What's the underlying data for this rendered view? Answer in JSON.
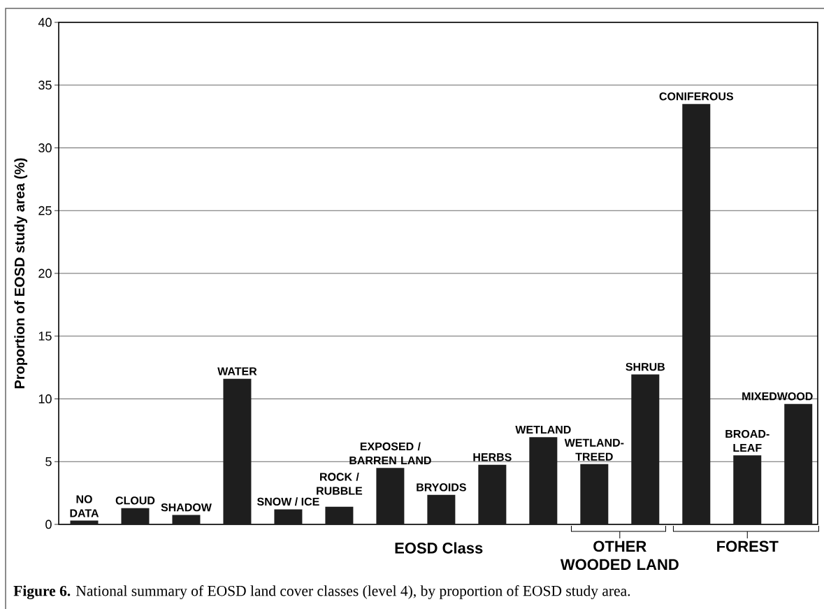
{
  "chart_data": {
    "type": "bar",
    "xlabel": "EOSD Class",
    "ylabel": "Proportion of EOSD study area (%)",
    "categories": [
      "NO DATA",
      "CLOUD",
      "SHADOW",
      "WATER",
      "SNOW / ICE",
      "ROCK / RUBBLE",
      "EXPOSED / BARREN LAND",
      "BRYOIDS",
      "HERBS",
      "WETLAND",
      "WETLAND-TREED",
      "SHRUB",
      "CONIFEROUS",
      "BROAD-LEAF",
      "MIXEDWOOD"
    ],
    "values": [
      0.3,
      1.3,
      0.75,
      11.6,
      1.2,
      1.4,
      4.5,
      2.35,
      4.75,
      6.95,
      4.8,
      11.95,
      33.5,
      5.5,
      9.6
    ],
    "color": "#1e1e1e",
    "ylim": [
      0,
      40
    ],
    "yticks": [
      0,
      5,
      10,
      15,
      20,
      25,
      30,
      35,
      40
    ],
    "grid": "y",
    "annotations": [
      "**Figure 6.** National summary of EOSD land cover classes (level 4), by proportion of EOSD study area.",
      "OTHER WOODED LAND",
      "FOREST"
    ]
  }
}
